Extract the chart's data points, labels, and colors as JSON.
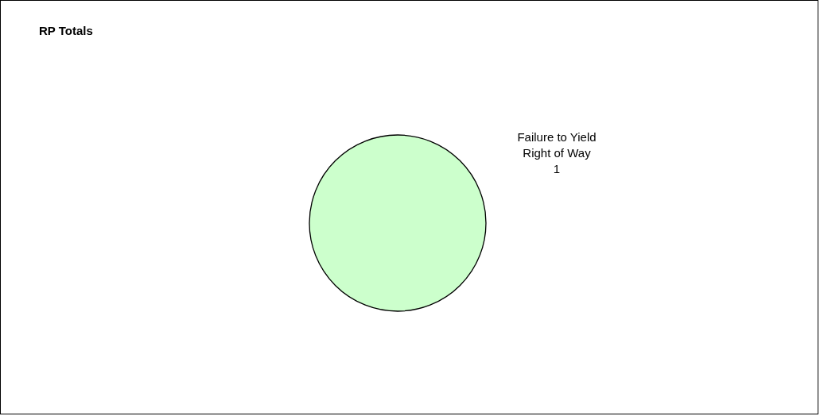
{
  "chart_data": {
    "type": "pie",
    "title": "RP Totals",
    "categories": [
      "Failure to Yield Right of Way"
    ],
    "values": [
      1
    ],
    "colors": [
      "#ccffcc"
    ],
    "data_labels": true
  }
}
